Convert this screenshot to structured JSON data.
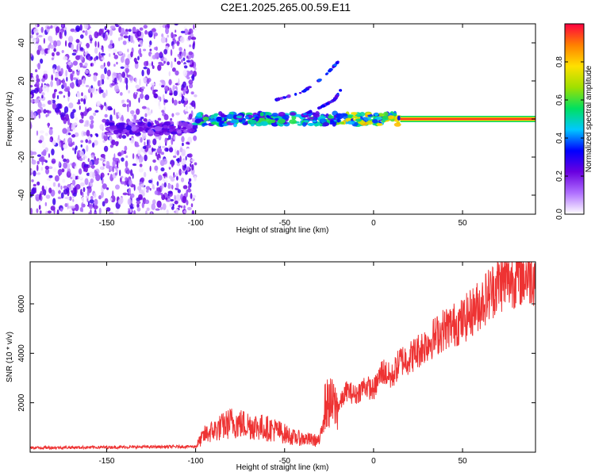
{
  "title": "C2E1.2025.265.00.59.E11",
  "chart_data": [
    {
      "type": "heatmap",
      "xlabel": "Height of straight line (km)",
      "ylabel": "Frequency (Hz)",
      "xlim": [
        -193,
        91
      ],
      "ylim": [
        -50,
        50
      ],
      "x_ticks": [
        -150,
        -100,
        -50,
        0,
        50
      ],
      "y_ticks": [
        -40,
        -20,
        0,
        20,
        40
      ],
      "colorbar": {
        "label": "Normalized spectral amplitude",
        "range": [
          0,
          1
        ],
        "ticks": [
          0.0,
          0.2,
          0.4,
          0.6,
          0.8
        ],
        "tick_labels": [
          "0.0",
          "0.2",
          "0.4",
          "0.6",
          "0.8"
        ],
        "colors": [
          "#ffffff",
          "#b070ff",
          "#6a00e0",
          "#0000ff",
          "#00c8ff",
          "#00e060",
          "#a0e000",
          "#ffe000",
          "#ff8000",
          "#ff0040"
        ]
      },
      "regions": [
        {
          "kind": "noise",
          "x_range": [
            -193,
            -100
          ],
          "amplitude": 0.2
        },
        {
          "kind": "band",
          "x_range": [
            -150,
            -100
          ],
          "frequency": -5,
          "amplitude": 0.25
        },
        {
          "kind": "band",
          "x_range": [
            -100,
            -20
          ],
          "frequency": 0,
          "amplitude": 0.5
        },
        {
          "kind": "band",
          "x_range": [
            -20,
            15
          ],
          "frequency": 0,
          "amplitude": 0.7
        },
        {
          "kind": "band",
          "x_range": [
            15,
            91
          ],
          "frequency": 0,
          "amplitude": 0.95
        }
      ],
      "arcs": [
        {
          "x": [
            -55,
            -40,
            -28,
            -20
          ],
          "y": [
            10,
            14,
            22,
            30
          ]
        },
        {
          "x": [
            -40,
            -30,
            -22,
            -18
          ],
          "y": [
            2,
            6,
            10,
            16
          ]
        }
      ]
    },
    {
      "type": "line",
      "xlabel": "Height of straight line (km)",
      "ylabel": "SNR (10 * v/v)",
      "xlim": [
        -193,
        91
      ],
      "ylim": [
        0,
        7700
      ],
      "x_ticks": [
        -150,
        -100,
        -50,
        0,
        50
      ],
      "y_ticks": [
        2000,
        4000,
        6000
      ],
      "series_color": "#ee3333",
      "x": [
        -193,
        -150,
        -100,
        -95,
        -80,
        -70,
        -55,
        -45,
        -30,
        -28,
        -25,
        -20,
        -15,
        -10,
        -5,
        0,
        5,
        10,
        15,
        20,
        30,
        40,
        50,
        60,
        70,
        80,
        91
      ],
      "y": [
        180,
        200,
        230,
        700,
        1200,
        1100,
        900,
        600,
        450,
        1800,
        2000,
        1800,
        2500,
        2300,
        2700,
        2500,
        3300,
        3000,
        3700,
        3800,
        4400,
        5000,
        5300,
        6000,
        6800,
        7100,
        7200
      ]
    }
  ]
}
